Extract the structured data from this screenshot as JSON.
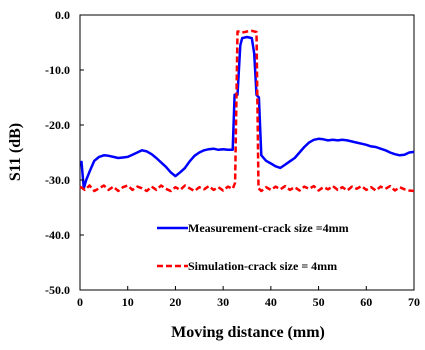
{
  "chart_data": {
    "type": "line",
    "xlabel": "Moving distance (mm)",
    "ylabel": "S11 (dB)",
    "xlim": [
      0,
      70
    ],
    "ylim": [
      -50,
      0
    ],
    "x_ticks": [
      "0",
      "10",
      "20",
      "30",
      "40",
      "50",
      "60",
      "70"
    ],
    "y_ticks": [
      "0.0",
      "-10.0",
      "-20.0",
      "-30.0",
      "-40.0",
      "-50.0"
    ],
    "grid": false,
    "legend_position": "bottom-center",
    "series": [
      {
        "name": "Measurement-crack  size =4mm",
        "color": "#0000ff",
        "style": "solid",
        "x": [
          0.3,
          0.8,
          1.3,
          2,
          3,
          4,
          5,
          6,
          7,
          8,
          9,
          10,
          11,
          12,
          13,
          14,
          15,
          16,
          17,
          18,
          19,
          20,
          21,
          22,
          23,
          24,
          25,
          26,
          27,
          28,
          29,
          30,
          31,
          32,
          32.4,
          33,
          33.6,
          34,
          35,
          36,
          36.5,
          37,
          37.5,
          38,
          39,
          40,
          41,
          42,
          43,
          44,
          45,
          46,
          47,
          48,
          49,
          50,
          51,
          52,
          53,
          54,
          55,
          56,
          57,
          58,
          59,
          60,
          61,
          62,
          63,
          64,
          65,
          66,
          67,
          68,
          69,
          70
        ],
        "values": [
          -26.5,
          -31.5,
          -30,
          -28.5,
          -26.5,
          -25.8,
          -25.5,
          -25.6,
          -25.8,
          -26,
          -25.9,
          -25.8,
          -25.4,
          -25,
          -24.6,
          -24.8,
          -25.3,
          -26,
          -26.8,
          -27.6,
          -28.6,
          -29.3,
          -28.6,
          -27.8,
          -26.6,
          -25.6,
          -25,
          -24.6,
          -24.4,
          -24.3,
          -24.5,
          -24.4,
          -24.5,
          -24.5,
          -14.5,
          -14.5,
          -5.5,
          -4.2,
          -4,
          -4.2,
          -7,
          -14.5,
          -15,
          -25.5,
          -26.5,
          -27,
          -27.5,
          -27.8,
          -27.2,
          -26.6,
          -26,
          -25,
          -24,
          -23.2,
          -22.7,
          -22.5,
          -22.6,
          -22.8,
          -22.7,
          -22.8,
          -22.7,
          -22.8,
          -23,
          -23.2,
          -23.4,
          -23.6,
          -23.9,
          -24,
          -24.3,
          -24.6,
          -25,
          -25.3,
          -25.5,
          -25.4,
          -25,
          -24.9
        ]
      },
      {
        "name": "Simulation-crack size = 4mm",
        "color": "#ff0000",
        "style": "dashed",
        "x": [
          0,
          1,
          2,
          3,
          4,
          5,
          6,
          7,
          8,
          9,
          10,
          11,
          12,
          13,
          14,
          15,
          16,
          17,
          18,
          19,
          20,
          21,
          22,
          23,
          24,
          25,
          26,
          27,
          28,
          29,
          30,
          31,
          32,
          32.5,
          33,
          33.5,
          34,
          35,
          36,
          37,
          37.4,
          38,
          39,
          40,
          41,
          42,
          43,
          44,
          45,
          46,
          47,
          48,
          49,
          50,
          51,
          52,
          53,
          54,
          55,
          56,
          57,
          58,
          59,
          60,
          61,
          62,
          63,
          64,
          65,
          66,
          67,
          68,
          69,
          70
        ],
        "values": [
          -31.2,
          -31.8,
          -31,
          -32,
          -31.5,
          -31,
          -31.8,
          -31.2,
          -32,
          -31.3,
          -31,
          -31.8,
          -31.2,
          -31.5,
          -32,
          -31.2,
          -31.8,
          -31,
          -31.6,
          -32,
          -31.3,
          -31.8,
          -31,
          -31.5,
          -32,
          -31.3,
          -31.7,
          -31.1,
          -31.8,
          -31.3,
          -31.9,
          -31.2,
          -31.6,
          -30.5,
          -3,
          -3,
          -3.2,
          -3,
          -2.9,
          -3.1,
          -31.5,
          -32,
          -31.3,
          -31.8,
          -31.2,
          -31.7,
          -31.1,
          -31.8,
          -31.3,
          -31.9,
          -31.2,
          -31.6,
          -31.1,
          -31.9,
          -31.3,
          -31.7,
          -31.1,
          -31.8,
          -31.3,
          -31.9,
          -31.2,
          -31.6,
          -31.1,
          -31.8,
          -31.3,
          -31.9,
          -31.2,
          -31.6,
          -31.1,
          -31.9,
          -31.3,
          -31.7,
          -31.9,
          -32
        ]
      }
    ]
  }
}
